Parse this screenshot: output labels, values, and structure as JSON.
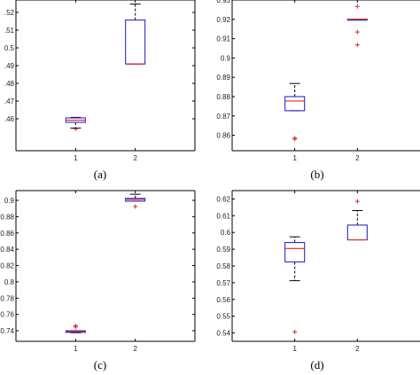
{
  "colors": {
    "box": "#2b2bd0",
    "median": "#e0261f",
    "whisker": "#000000",
    "outlier": "#e0261f",
    "axes": "#000000"
  },
  "chart_data": [
    {
      "type": "box",
      "panel": "(a)",
      "categories": [
        "1",
        "2"
      ],
      "ylim": [
        0.442,
        0.527
      ],
      "yticks": [
        0.46,
        0.47,
        0.48,
        0.49,
        0.5,
        0.51,
        0.52
      ],
      "ytick_labels": [
        ".46",
        ".47",
        ".48",
        ".49",
        "0.5",
        ".51",
        ".52"
      ],
      "boxes": [
        {
          "q1": 0.458,
          "median": 0.4592,
          "q3": 0.4605,
          "whisker_low": 0.4548,
          "whisker_high": 0.4608,
          "outliers": [
            0.4543
          ]
        },
        {
          "q1": 0.4909,
          "median": 0.4909,
          "q3": 0.5157,
          "whisker_low": 0.4909,
          "whisker_high": 0.5247,
          "outliers": []
        }
      ]
    },
    {
      "type": "box",
      "panel": "(b)",
      "categories": [
        "1",
        "2"
      ],
      "ylim": [
        0.852,
        0.93
      ],
      "yticks": [
        0.86,
        0.87,
        0.88,
        0.89,
        0.9,
        0.91,
        0.92,
        0.93
      ],
      "ytick_labels": [
        "0.86",
        "0.87",
        "0.88",
        "0.89",
        "0.9",
        "0.91",
        "0.92",
        "0.93"
      ],
      "boxes": [
        {
          "q1": 0.8727,
          "median": 0.8777,
          "q3": 0.88,
          "whisker_low": 0.8727,
          "whisker_high": 0.8868,
          "outliers": [
            0.858,
            0.8585
          ]
        },
        {
          "q1": 0.9201,
          "median": 0.9201,
          "q3": 0.9201,
          "whisker_low": 0.9201,
          "whisker_high": 0.9201,
          "outliers": [
            0.9267,
            0.9134,
            0.9068
          ]
        }
      ]
    },
    {
      "type": "box",
      "panel": "(c)",
      "categories": [
        "1",
        "2"
      ],
      "ylim": [
        0.727,
        0.912
      ],
      "yticks": [
        0.74,
        0.76,
        0.78,
        0.8,
        0.82,
        0.84,
        0.86,
        0.88,
        0.9
      ],
      "ytick_labels": [
        "0.74",
        "0.76",
        "0.78",
        "0.8",
        "0.82",
        "0.84",
        "0.86",
        "0.88",
        "0.9"
      ],
      "boxes": [
        {
          "q1": 0.738,
          "median": 0.739,
          "q3": 0.74,
          "whisker_low": 0.7375,
          "whisker_high": 0.74,
          "outliers": [
            0.746,
            0.7445
          ]
        },
        {
          "q1": 0.899,
          "median": 0.901,
          "q3": 0.9025,
          "whisker_low": 0.899,
          "whisker_high": 0.9075,
          "outliers": [
            0.8925
          ]
        }
      ]
    },
    {
      "type": "box",
      "panel": "(d)",
      "categories": [
        "1",
        "2"
      ],
      "ylim": [
        0.535,
        0.625
      ],
      "yticks": [
        0.54,
        0.55,
        0.56,
        0.57,
        0.58,
        0.59,
        0.6,
        0.61,
        0.62
      ],
      "ytick_labels": [
        "0.54",
        "0.55",
        "0.56",
        "0.57",
        "0.58",
        "0.59",
        "0.6",
        "0.61",
        "0.62"
      ],
      "boxes": [
        {
          "q1": 0.5824,
          "median": 0.5904,
          "q3": 0.594,
          "whisker_low": 0.5712,
          "whisker_high": 0.5974,
          "outliers": [
            0.5406
          ]
        },
        {
          "q1": 0.5956,
          "median": 0.5956,
          "q3": 0.6044,
          "whisker_low": 0.5956,
          "whisker_high": 0.6131,
          "outliers": [
            0.6186
          ]
        }
      ]
    }
  ]
}
